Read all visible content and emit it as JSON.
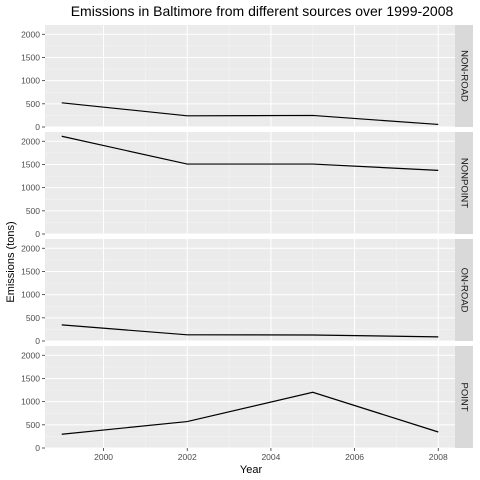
{
  "chart_data": {
    "type": "line",
    "title": "Emissions in Baltimore from different sources over 1999-2008",
    "xlabel": "Year",
    "ylabel": "Emissions (tons)",
    "x": [
      1999,
      2002,
      2005,
      2008
    ],
    "xlim": [
      1998.6,
      2008.4
    ],
    "xticks": [
      2000,
      2002,
      2004,
      2006,
      2008
    ],
    "ylim": [
      0,
      2200
    ],
    "yticks": [
      0,
      500,
      1000,
      1500,
      2000
    ],
    "grid": true,
    "facet_strip_position": "right",
    "series": [
      {
        "name": "NON-ROAD",
        "values": [
          522,
          241,
          249,
          55
        ]
      },
      {
        "name": "NONPOINT",
        "values": [
          2108,
          1509,
          1509,
          1373
        ]
      },
      {
        "name": "ON-ROAD",
        "values": [
          347,
          134,
          130,
          89
        ]
      },
      {
        "name": "POINT",
        "values": [
          297,
          570,
          1202,
          345
        ]
      }
    ]
  }
}
